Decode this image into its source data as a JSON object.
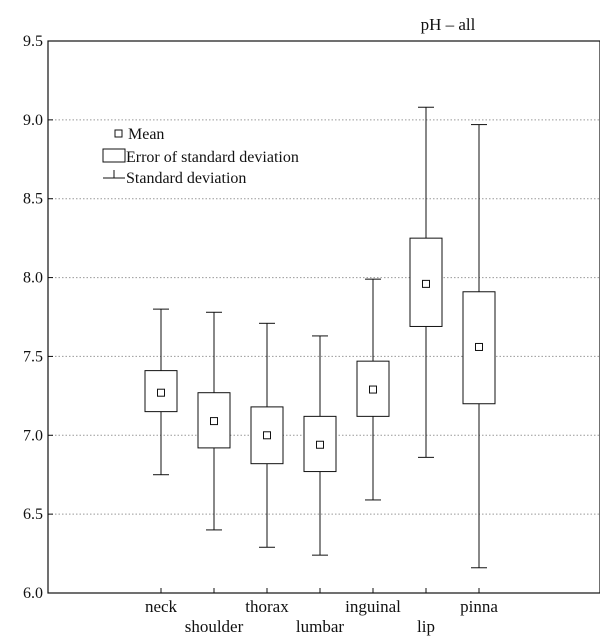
{
  "chart_data": {
    "type": "box",
    "title": "pH – all",
    "categories": [
      "neck",
      "shoulder",
      "thorax",
      "lumbar",
      "inguinal",
      "lip",
      "pinna"
    ],
    "series": [
      {
        "mean": [
          7.27,
          7.09,
          7.0,
          6.94,
          7.29,
          7.96,
          7.56
        ],
        "box_low": [
          7.15,
          6.92,
          6.82,
          6.77,
          7.12,
          7.69,
          7.2
        ],
        "box_high": [
          7.41,
          7.27,
          7.18,
          7.12,
          7.47,
          8.25,
          7.91
        ],
        "whisker_low": [
          6.75,
          6.4,
          6.29,
          6.24,
          6.59,
          6.86,
          6.16
        ],
        "whisker_high": [
          7.8,
          7.78,
          7.71,
          7.63,
          7.99,
          9.08,
          8.97
        ]
      }
    ],
    "ylim": [
      6.0,
      9.5
    ],
    "yticks": [
      "6.0",
      "6.5",
      "7.0",
      "7.5",
      "8.0",
      "8.5",
      "9.0",
      "9.5"
    ],
    "grid": "horizontal dotted",
    "legend_position": "top-left",
    "legend": [
      "Mean",
      "Error of standard deviation",
      "Standard deviation"
    ],
    "colors": {
      "line": "#111111",
      "grid": "#999999",
      "background": "#ffffff"
    }
  }
}
